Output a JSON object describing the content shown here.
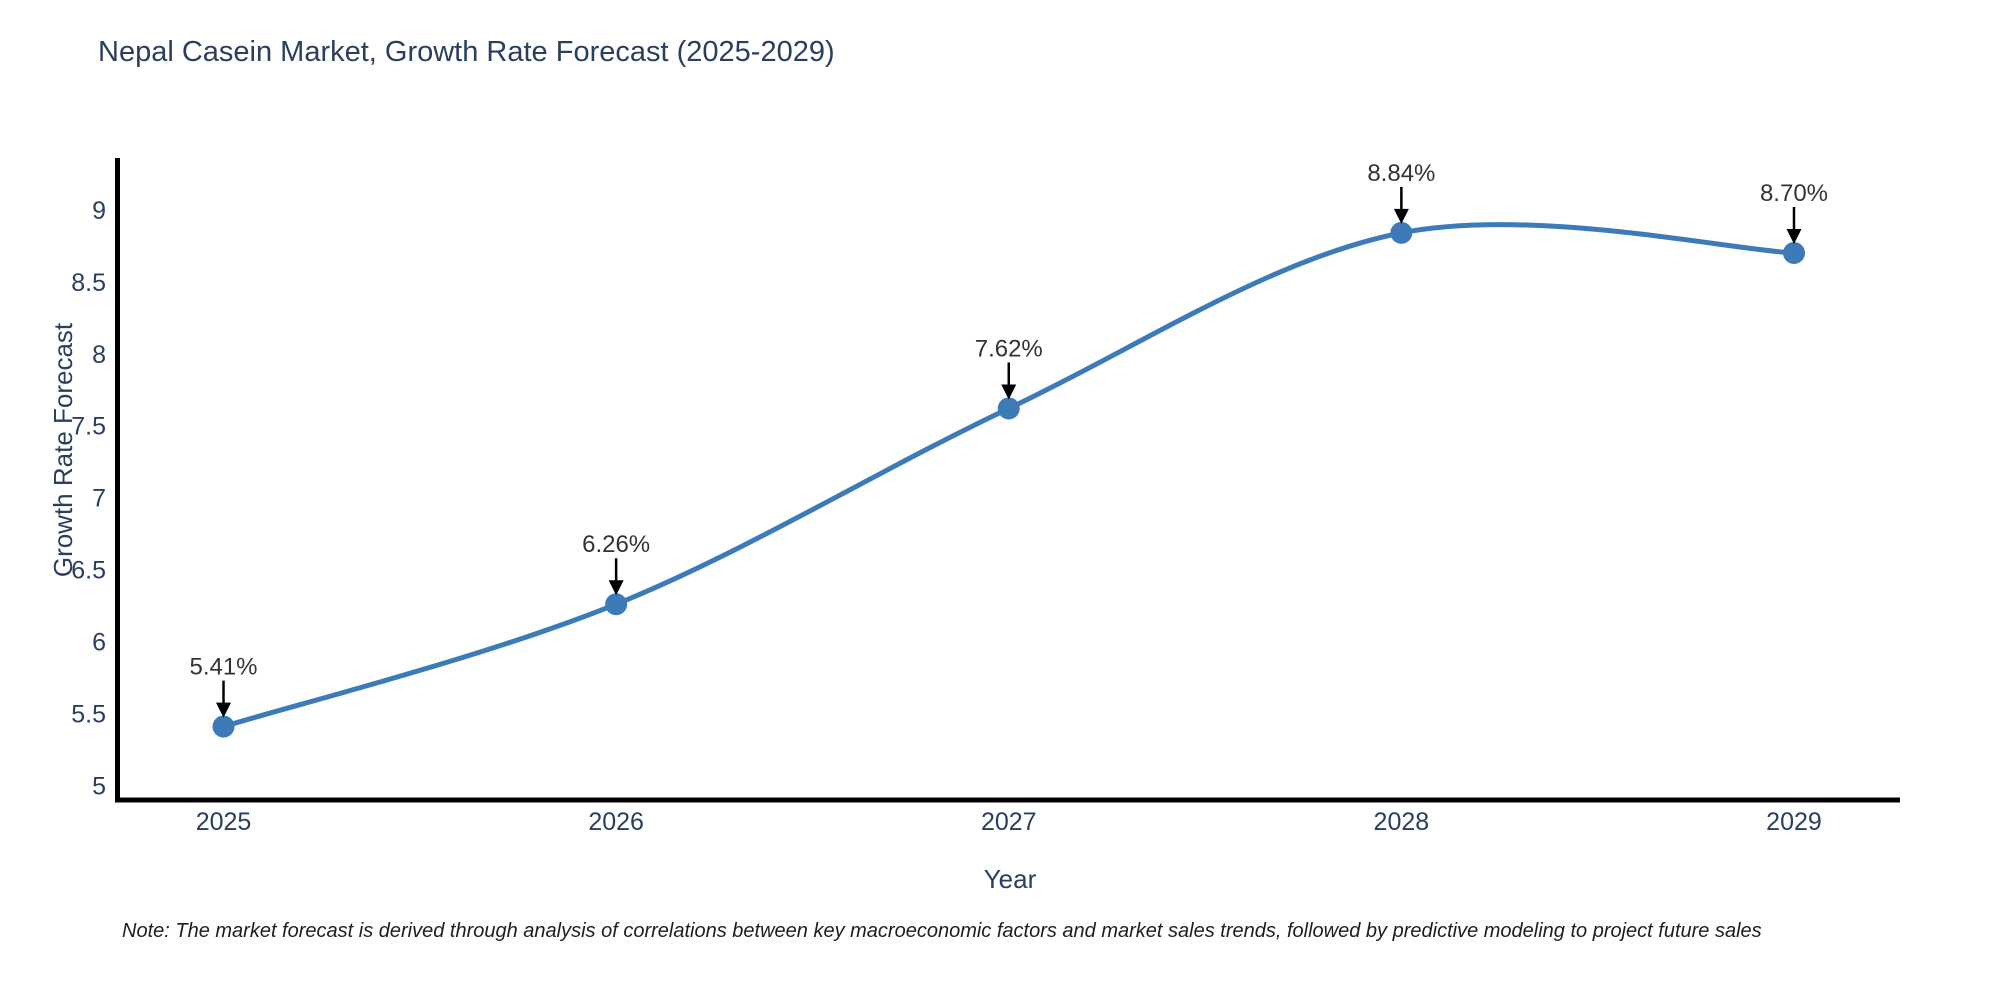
{
  "figure": {
    "title": "Nepal Casein Market, Growth Rate Forecast (2025-2029)",
    "note": "Note: The market forecast is derived through analysis of correlations between key macroeconomic factors and market sales trends, followed by predictive modeling to project future sales"
  },
  "chart_data": {
    "type": "line",
    "title": "Nepal Casein Market, Growth Rate Forecast (2025-2029)",
    "xlabel": "Year",
    "ylabel": "Growth Rate Forecast",
    "x": [
      2025,
      2026,
      2027,
      2028,
      2029
    ],
    "y": [
      5.41,
      6.26,
      7.62,
      8.84,
      8.7
    ],
    "point_labels": [
      "5.41%",
      "6.26%",
      "7.62%",
      "8.84%",
      "8.70%"
    ],
    "x_ticks": [
      2025,
      2026,
      2027,
      2028,
      2029
    ],
    "y_ticks": [
      5,
      5.5,
      6,
      6.5,
      7,
      7.5,
      8,
      8.5,
      9
    ],
    "xlim": [
      2024.73,
      2029.27
    ],
    "ylim": [
      4.9,
      9.36
    ],
    "line_shape": "spline",
    "grid": false,
    "legend": false,
    "line_color": "#3d7bb8",
    "marker_color": "#3d7bb8",
    "axis_color": "#000000",
    "annotation_arrow_color": "#000000",
    "title_color": "#2a3f5f"
  }
}
